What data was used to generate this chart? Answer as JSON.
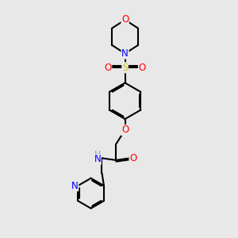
{
  "background_color": "#e8e8e8",
  "bond_color": "#000000",
  "atom_colors": {
    "O": "#ff0000",
    "N": "#0000ff",
    "S": "#cccc00",
    "H": "#70a0a0",
    "C": "#000000"
  },
  "bond_width": 1.5,
  "font_size": 8.5,
  "figsize": [
    3.0,
    3.0
  ],
  "dpi": 100
}
